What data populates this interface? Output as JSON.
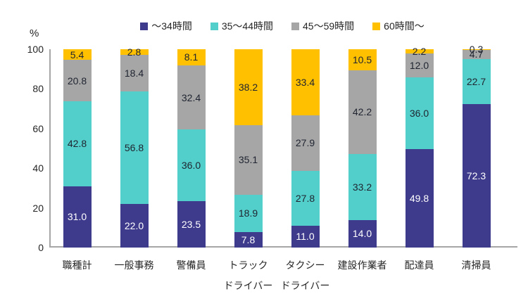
{
  "chart_data": {
    "type": "bar",
    "stacked": true,
    "orientation": "vertical",
    "unit_label": "%",
    "ylim": [
      0,
      100
    ],
    "yticks": [
      0,
      20,
      40,
      60,
      80,
      100
    ],
    "grid": false,
    "legend_position": "top",
    "value_decimals": 1,
    "categories": [
      [
        "職種計"
      ],
      [
        "一般事務"
      ],
      [
        "警備員"
      ],
      [
        "トラック",
        "ドライバー"
      ],
      [
        "タクシー",
        "ドライバー"
      ],
      [
        "建設作業者"
      ],
      [
        "配達員"
      ],
      [
        "清掃員"
      ]
    ],
    "series": [
      {
        "name": "～34時間",
        "color": "#3e3a8c",
        "label_color": "#ffffff",
        "values": [
          31.0,
          22.0,
          23.5,
          7.8,
          11.0,
          14.0,
          49.8,
          72.3
        ]
      },
      {
        "name": "35～44時間",
        "color": "#52cfca",
        "label_color": "#1f2430",
        "values": [
          42.8,
          56.8,
          36.0,
          18.9,
          27.8,
          33.2,
          36.0,
          22.7
        ]
      },
      {
        "name": "45～59時間",
        "color": "#a6a6a6",
        "label_color": "#1f2430",
        "values": [
          20.8,
          18.4,
          32.4,
          35.1,
          27.9,
          42.2,
          12.0,
          4.7
        ]
      },
      {
        "name": "60時間～",
        "color": "#ffc000",
        "label_color": "#1f2430",
        "values": [
          5.4,
          2.8,
          8.1,
          38.2,
          33.4,
          10.5,
          2.2,
          0.3
        ]
      }
    ],
    "axis_color": "#a6a6a6"
  }
}
